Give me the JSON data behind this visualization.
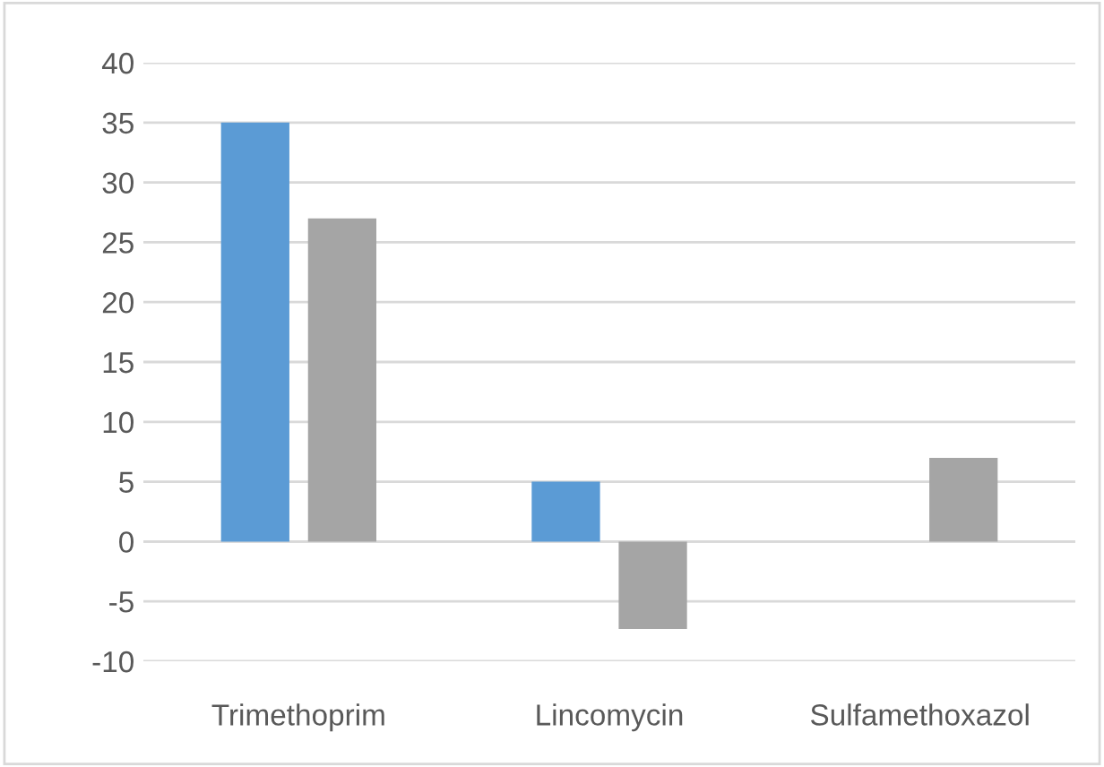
{
  "chart_data": {
    "type": "bar",
    "categories": [
      "Trimethoprim",
      "Lincomycin",
      "Sulfamethoxazol"
    ],
    "series": [
      {
        "color": "#5b9bd5",
        "values": [
          35,
          5,
          null
        ]
      },
      {
        "color": "#a5a5a5",
        "values": [
          27,
          -7.3,
          7
        ]
      }
    ],
    "ylim": [
      -10,
      40
    ],
    "yticks": [
      -10,
      -5,
      0,
      5,
      10,
      15,
      20,
      25,
      30,
      35,
      40
    ],
    "grid": "y",
    "legend": false
  }
}
